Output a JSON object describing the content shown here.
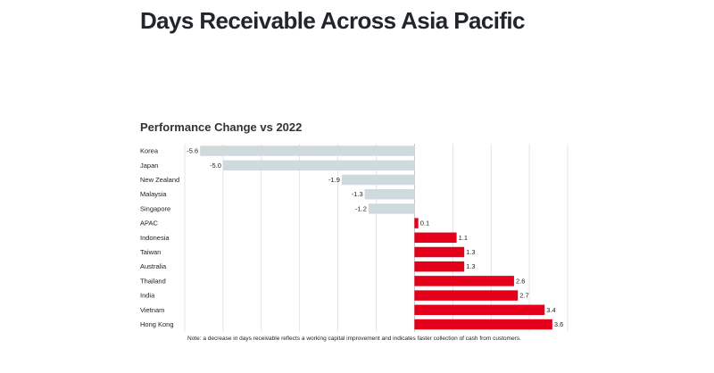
{
  "page": {
    "title": "Days Receivable Across Asia Pacific"
  },
  "chart_data": {
    "type": "bar",
    "orientation": "horizontal",
    "title": "Performance Change vs 2022",
    "xlabel": "",
    "ylabel": "",
    "xlim": [
      -6,
      4
    ],
    "grid": true,
    "legend": "none",
    "categories": [
      "Korea",
      "Japan",
      "New Zealand",
      "Malaysia",
      "Singapore",
      "APAC",
      "Indonesia",
      "Taiwan",
      "Australia",
      "Thailand",
      "India",
      "Vietnam",
      "Hong Kong"
    ],
    "values": [
      -5.6,
      -5.0,
      -1.9,
      -1.3,
      -1.2,
      0.1,
      1.1,
      1.3,
      1.3,
      2.6,
      2.7,
      3.4,
      3.6
    ],
    "value_labels": [
      "-5.6",
      "-5.0",
      "-1.9",
      "-1.3",
      "-1.2",
      "0.1",
      "1.1",
      "1.3",
      "1.3",
      "2.6",
      "2.7",
      "3.4",
      "3.6"
    ],
    "colors": {
      "negative": "#d0dadd",
      "positive": "#e4001b",
      "grid": "#d9d9d9"
    },
    "note": "Note: a decrease in days receivable reflects a working capital improvement and indicates faster collection of cash from customers."
  }
}
